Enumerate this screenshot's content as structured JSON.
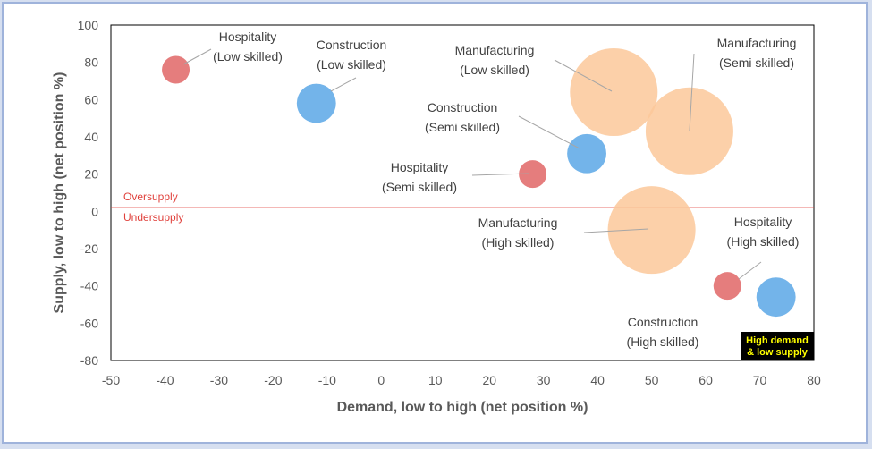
{
  "chart_data": {
    "type": "scatter",
    "xlabel": "Demand, low to high (net position %)",
    "ylabel": "Supply, low to high (net position %)",
    "xlim": [
      -50,
      80
    ],
    "ylim": [
      -80,
      100
    ],
    "x_ticks": [
      -50,
      -40,
      -30,
      -20,
      -10,
      0,
      10,
      20,
      30,
      40,
      50,
      60,
      70,
      80
    ],
    "y_ticks": [
      -80,
      -60,
      -40,
      -20,
      0,
      20,
      40,
      60,
      80,
      100
    ],
    "grid": false,
    "reference_line": {
      "y": 2,
      "color": "#e0413c",
      "above_label": "Oversupply",
      "below_label": "Undersupply"
    },
    "points": [
      {
        "lines": [
          "Hospitality",
          "(Low skilled)"
        ],
        "x": -38,
        "y": 76,
        "size": 1,
        "color": "#e06666"
      },
      {
        "lines": [
          "Construction",
          "(Low skilled)"
        ],
        "x": -12,
        "y": 58,
        "size": 2,
        "color": "#5ba7e6"
      },
      {
        "lines": [
          "Manufacturing",
          "(Low skilled)"
        ],
        "x": 43,
        "y": 64,
        "size": 10,
        "color": "#fbc89a"
      },
      {
        "lines": [
          "Manufacturing",
          "(Semi skilled)"
        ],
        "x": 57,
        "y": 43,
        "size": 10,
        "color": "#fbc89a"
      },
      {
        "lines": [
          "Construction",
          "(Semi skilled)"
        ],
        "x": 38,
        "y": 31,
        "size": 2,
        "color": "#5ba7e6"
      },
      {
        "lines": [
          "Hospitality",
          "(Semi skilled)"
        ],
        "x": 28,
        "y": 20,
        "size": 1,
        "color": "#e06666"
      },
      {
        "lines": [
          "Manufacturing",
          "(High skilled)"
        ],
        "x": 50,
        "y": -10,
        "size": 10,
        "color": "#fbc89a"
      },
      {
        "lines": [
          "Hospitality",
          "(High skilled)"
        ],
        "x": 64,
        "y": -40,
        "size": 1,
        "color": "#e06666"
      },
      {
        "lines": [
          "Construction",
          "(High skilled)"
        ],
        "x": 73,
        "y": -46,
        "size": 2,
        "color": "#5ba7e6"
      }
    ],
    "callout": {
      "lines": [
        "High demand",
        "& low supply"
      ],
      "background": "#000000",
      "text_color": "#ffff00"
    }
  }
}
